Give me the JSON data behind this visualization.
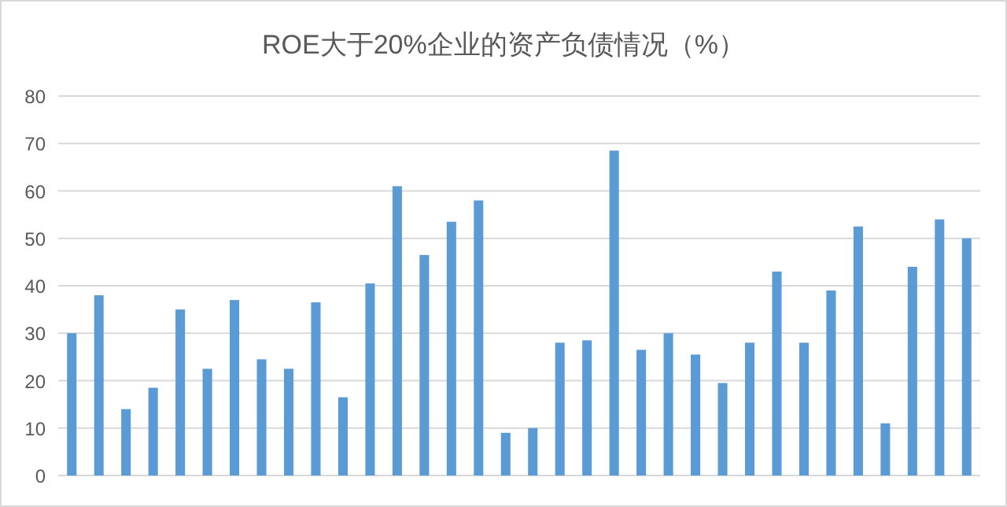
{
  "chart_data": {
    "type": "bar",
    "title": "ROE大于20%企业的资产负债情况（%）",
    "categories": [
      null,
      null,
      null,
      null,
      null,
      null,
      null,
      null,
      null,
      null,
      null,
      null,
      null,
      null,
      null,
      null,
      null,
      null,
      null,
      null,
      null,
      null,
      null,
      null,
      null,
      null,
      null,
      null,
      null,
      null,
      null,
      null,
      null,
      null
    ],
    "values": [
      30,
      38,
      14,
      18.5,
      35,
      22.5,
      37,
      24.5,
      22.5,
      36.5,
      16.5,
      40.5,
      61,
      46.5,
      53.5,
      58,
      9,
      10,
      28,
      28.5,
      68.5,
      26.5,
      30,
      25.5,
      19.5,
      28,
      43,
      28,
      39,
      52.5,
      11,
      44,
      54,
      50
    ],
    "color": "#5b9bd5",
    "ylim": [
      0,
      80
    ],
    "yticks": [
      0,
      10,
      20,
      30,
      40,
      50,
      60,
      70,
      80
    ],
    "grid": "y"
  }
}
